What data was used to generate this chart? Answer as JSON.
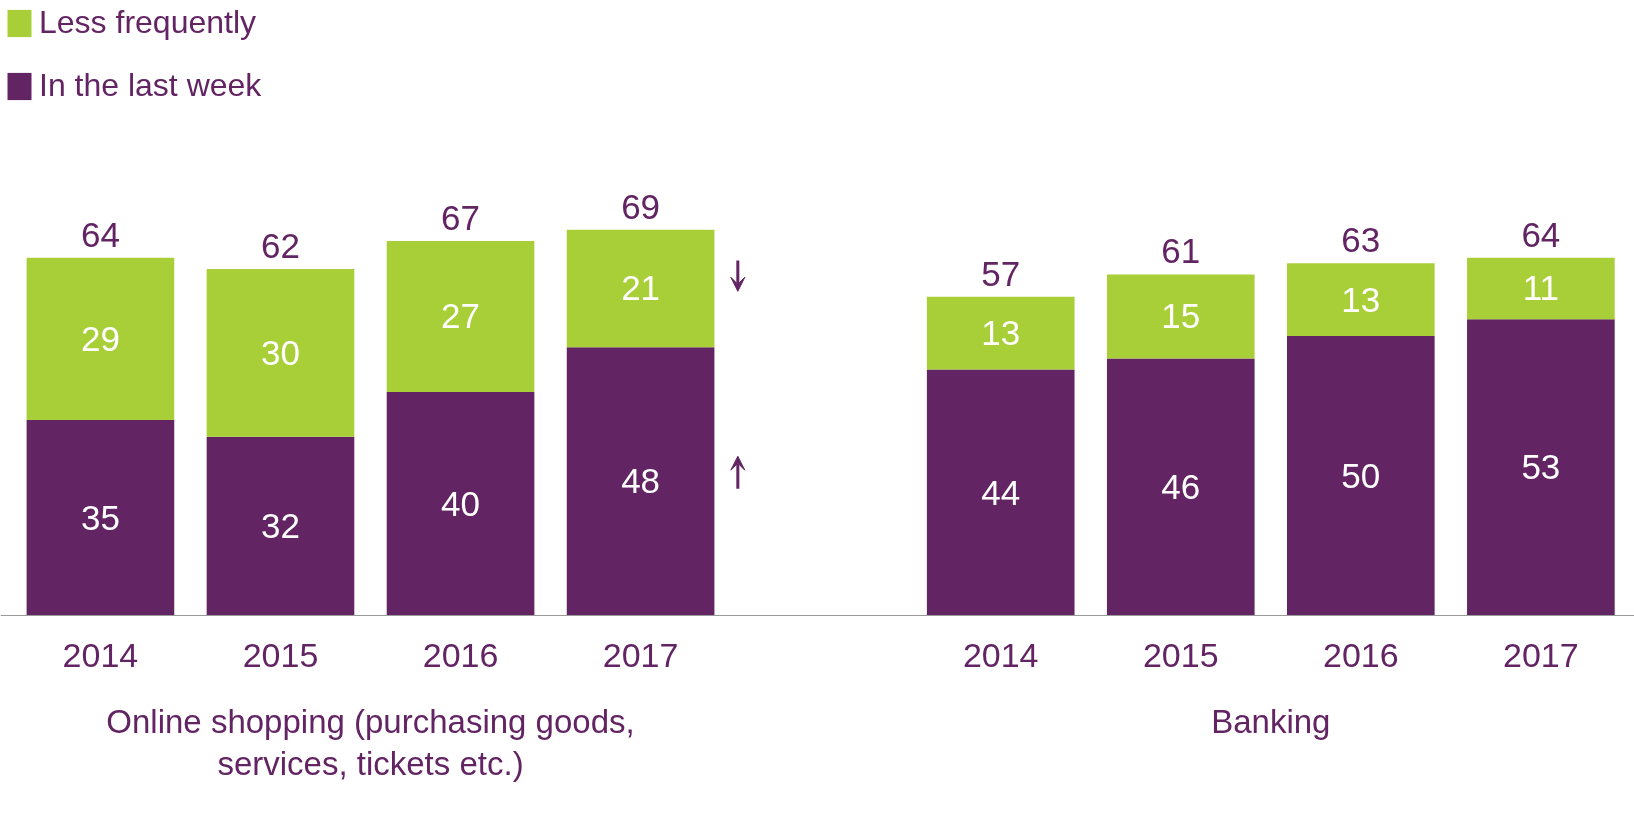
{
  "chart_data": {
    "type": "bar",
    "stacked": true,
    "data_labels": true,
    "legend": "top left",
    "grid": false,
    "categories": [
      "2014",
      "2015",
      "2016",
      "2017",
      null,
      "2014",
      "2015",
      "2016",
      "2017"
    ],
    "series": [
      {
        "name": "In the last week",
        "color": "#622463",
        "values": [
          35,
          32,
          40,
          48,
          null,
          44,
          46,
          50,
          53
        ]
      },
      {
        "name": "Less frequently",
        "color": "#a8cf38",
        "values": [
          29,
          30,
          27,
          21,
          null,
          13,
          15,
          13,
          11
        ]
      }
    ],
    "totals": [
      "64",
      "62",
      "67",
      "69",
      null,
      "57",
      "61",
      "63",
      "64"
    ],
    "annotations": [
      "Online shopping (purchasing goods, services, tickets etc.)",
      "Banking"
    ]
  }
}
